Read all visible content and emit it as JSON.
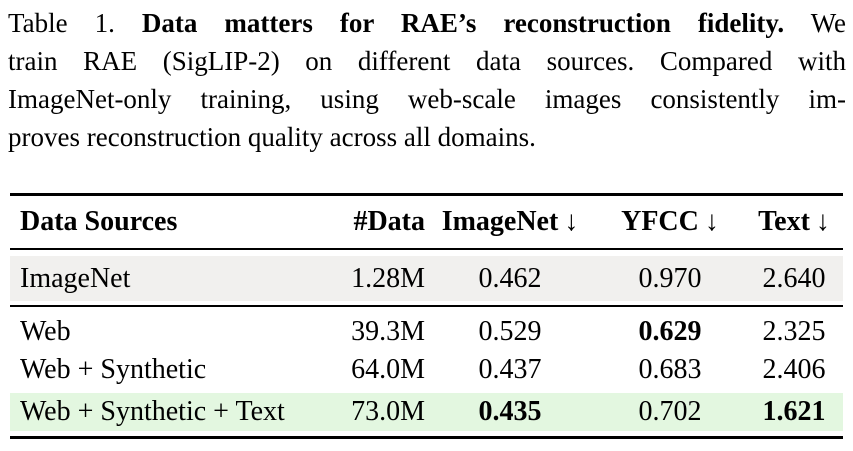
{
  "caption": {
    "line1": {
      "label": "Table 1.",
      "title": "Data matters for RAE’s reconstruction fidelity.",
      "tail": "We"
    },
    "line2": "train RAE (SigLIP-2) on different data sources. Compared with",
    "line3": "ImageNet-only training, using web-scale images consistently im-",
    "line4": "proves reconstruction quality across all domains."
  },
  "table": {
    "header": {
      "col1": "Data Sources",
      "col2": "#Data",
      "col3": "ImageNet",
      "col4": "YFCC",
      "col5": "Text",
      "arrow": "↓"
    },
    "rows": [
      {
        "source": "ImageNet",
        "n_data": "1.28M",
        "imagenet": "0.462",
        "yfcc": "0.970",
        "text": "2.640",
        "highlight": "gray",
        "bold": []
      },
      {
        "source": "Web",
        "n_data": "39.3M",
        "imagenet": "0.529",
        "yfcc": "0.629",
        "text": "2.325",
        "highlight": "none",
        "bold": [
          "yfcc"
        ]
      },
      {
        "source": "Web + Synthetic",
        "n_data": "64.0M",
        "imagenet": "0.437",
        "yfcc": "0.683",
        "text": "2.406",
        "highlight": "none",
        "bold": []
      },
      {
        "source": "Web + Synthetic + Text",
        "n_data": "73.0M",
        "imagenet": "0.435",
        "yfcc": "0.702",
        "text": "1.621",
        "highlight": "green",
        "bold": [
          "imagenet",
          "text"
        ]
      }
    ]
  },
  "colors": {
    "row_highlight_gray": "#f1f0ee",
    "row_highlight_green": "#e3f7e0",
    "rule": "#000000",
    "text": "#000000"
  }
}
